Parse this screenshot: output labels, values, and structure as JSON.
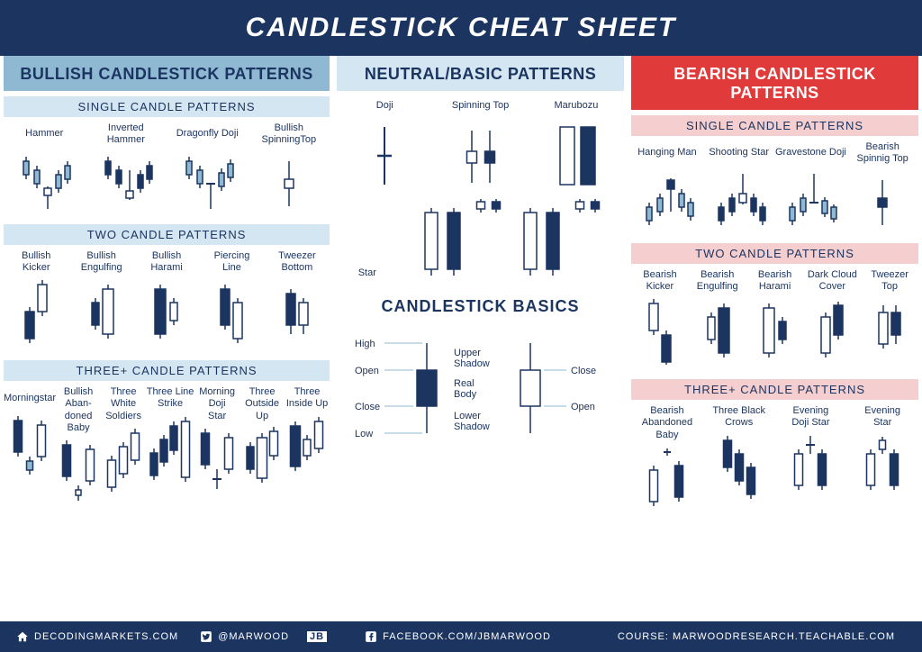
{
  "title": "CANDLESTICK CHEAT SHEET",
  "colors": {
    "dark_navy": "#1c3560",
    "light_blue": "#8fb9d3",
    "pale_blue": "#d4e6f1",
    "red": "#e03a3a",
    "pale_red": "#f5cfcf",
    "white": "#ffffff"
  },
  "columns": {
    "bullish": {
      "header": "BULLISH CANDLESTICK PATTERNS",
      "sections": {
        "single": {
          "header": "SINGLE CANDLE PATTERNS",
          "items": [
            "Hammer",
            "Inverted\nHammer",
            "Dragonfly Doji",
            "Bullish\nSpinningTop"
          ]
        },
        "two": {
          "header": "TWO CANDLE PATTERNS",
          "items": [
            "Bullish\nKicker",
            "Bullish\nEngulfing",
            "Bullish\nHarami",
            "Piercing\nLine",
            "Tweezer\nBottom"
          ]
        },
        "three": {
          "header": "THREE+ CANDLE PATTERNS",
          "items": [
            "Morningstar",
            "Bullish Aban-\ndoned Baby",
            "Three White\nSoldiers",
            "Three Line\nStrike",
            "Morning Doji\nStar",
            "Three\nOutside Up",
            "Three\nInside Up"
          ]
        }
      }
    },
    "neutral": {
      "header": "NEUTRAL/BASIC PATTERNS",
      "top_items": [
        "Doji",
        "Spinning Top",
        "Marubozu"
      ],
      "star_label": "Star",
      "basics_header": "CANDLESTICK BASICS",
      "basics_labels": {
        "high": "High",
        "open": "Open",
        "close": "Close",
        "low": "Low",
        "upper": "Upper\nShadow",
        "body": "Real\nBody",
        "lower": "Lower\nShadow",
        "c2": "Close",
        "o2": "Open"
      }
    },
    "bearish": {
      "header": "BEARISH CANDLESTICK PATTERNS",
      "sections": {
        "single": {
          "header": "SINGLE CANDLE PATTERNS",
          "items": [
            "Hanging Man",
            "Shooting Star",
            "Gravestone Doji",
            "Bearish\nSpinnig Top"
          ]
        },
        "two": {
          "header": "TWO CANDLE PATTERNS",
          "items": [
            "Bearish\nKicker",
            "Bearish\nEngulfing",
            "Bearish\nHarami",
            "Dark Cloud\nCover",
            "Tweezer\nTop"
          ]
        },
        "three": {
          "header": "THREE+ CANDLE PATTERNS",
          "items": [
            "Bearish\nAbandoned Baby",
            "Three Black\nCrows",
            "Evening\nDoji Star",
            "Evening\nStar"
          ]
        }
      }
    }
  },
  "footer": {
    "site1": "DECODINGMARKETS.COM",
    "twitter": "@MARWOOD",
    "twitter_suffix": "JB",
    "fb": "FACEBOOK.COM/JBMARWOOD",
    "course": "COURSE: MARWOODRESEARCH.TEACHABLE.COM"
  }
}
